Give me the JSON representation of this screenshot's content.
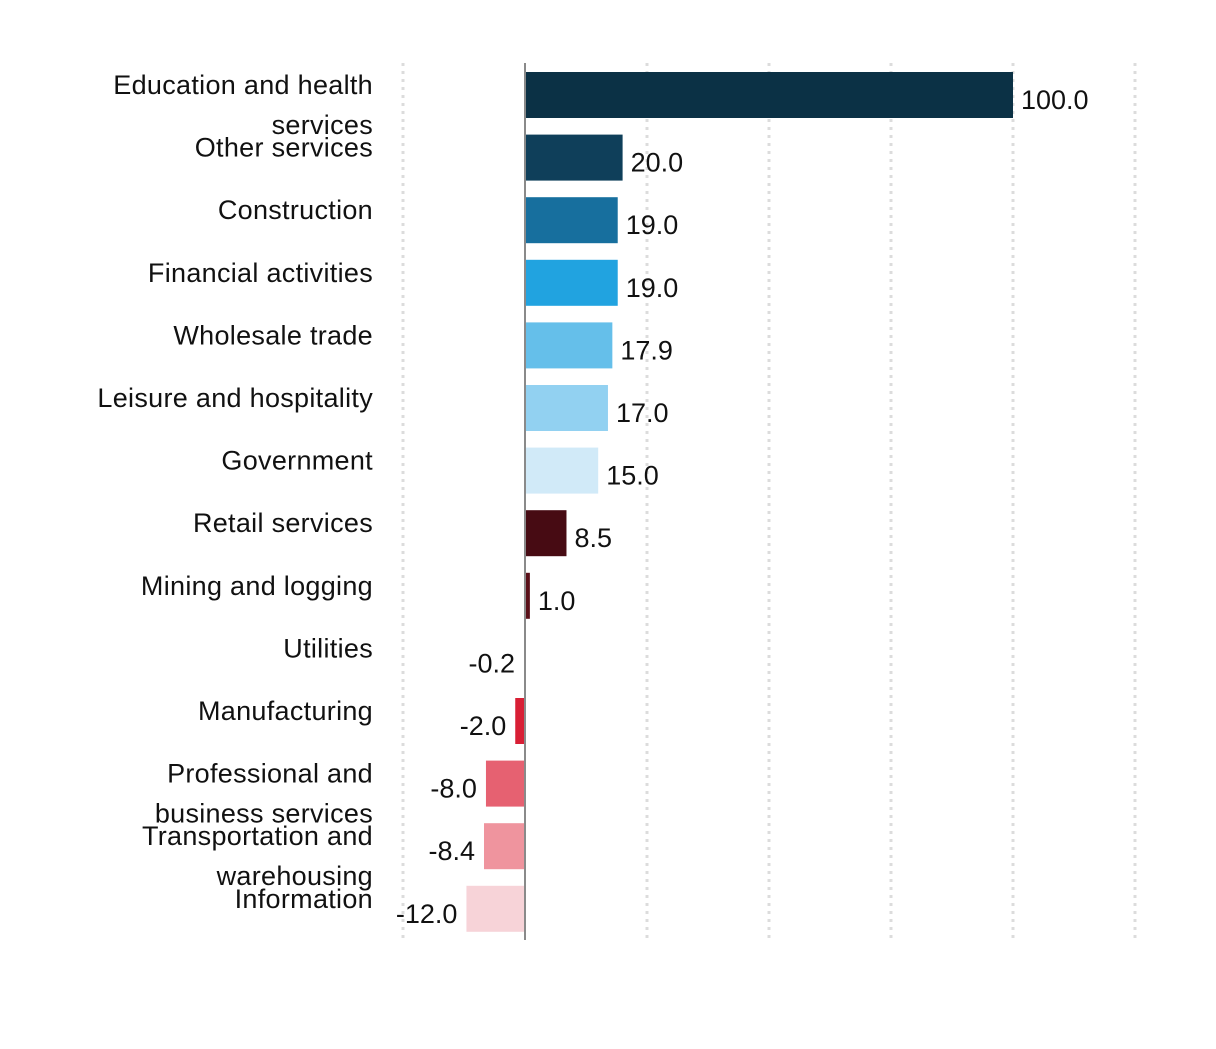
{
  "chart_data": {
    "type": "bar",
    "orientation": "horizontal",
    "title": "",
    "xlabel": "",
    "ylabel": "",
    "categories": [
      "Education and health services",
      "Other services",
      "Construction",
      "Financial activities",
      "Wholesale trade",
      "Leisure and hospitality",
      "Government",
      "Retail services",
      "Mining and logging",
      "Utilities",
      "Manufacturing",
      "Professional and business services",
      "Transportation and warehousing",
      "Information"
    ],
    "values": [
      100.0,
      20.0,
      19.0,
      19.0,
      17.9,
      17.0,
      15.0,
      8.5,
      1.0,
      -0.2,
      -2.0,
      -8.0,
      -8.4,
      -12.0
    ],
    "value_labels": [
      "100.0",
      "20.0",
      "19.0",
      "19.0",
      "17.9",
      "17.0",
      "15.0",
      "8.5",
      "1.0",
      "-0.2",
      "-2.0",
      "-8.0",
      "-8.4",
      "-12.0"
    ],
    "colors": [
      "#0b3145",
      "#0f3f5a",
      "#176f9e",
      "#21a3e0",
      "#65bfea",
      "#92d1f1",
      "#d1eaf8",
      "#470b13",
      "#5a0f18",
      "#8a1d28",
      "#d81f35",
      "#e66171",
      "#ef949e",
      "#f7d3d8"
    ],
    "xlim": [
      -25,
      125
    ],
    "grid": true,
    "grid_style": "dotted-vertical",
    "legend": "none"
  }
}
